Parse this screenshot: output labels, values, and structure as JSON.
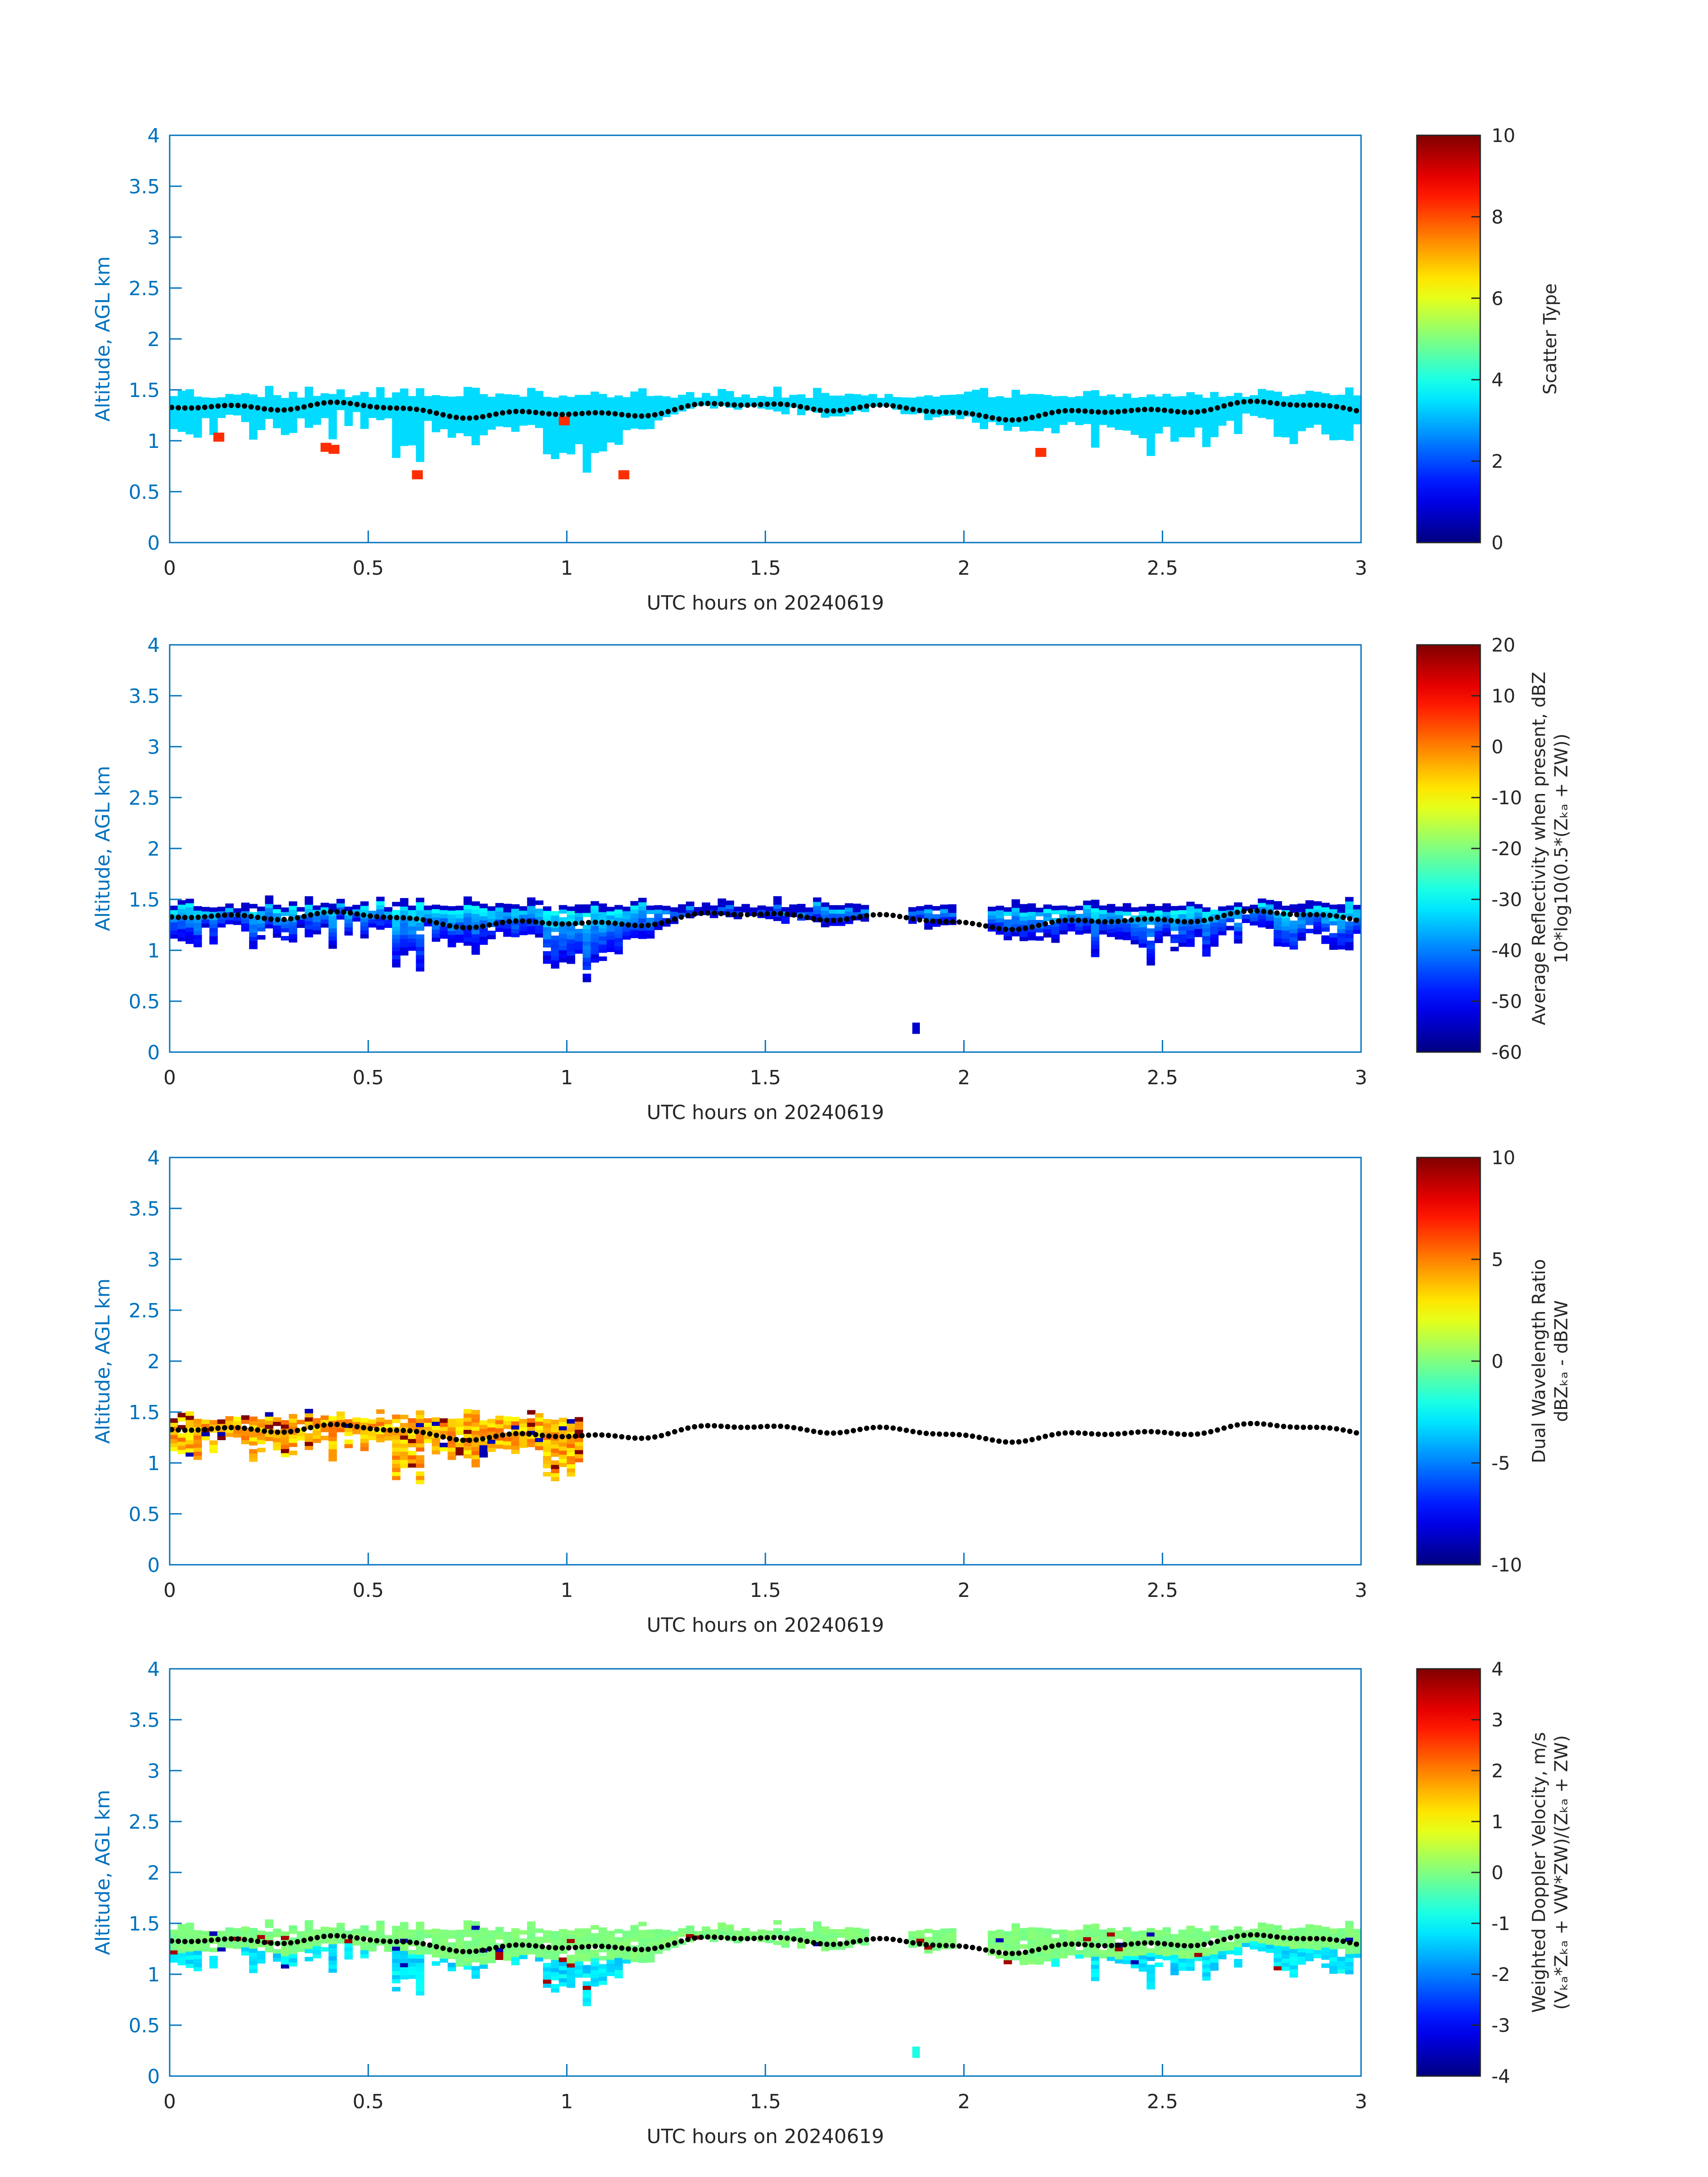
{
  "figure": {
    "background": "#ffffff",
    "axis_color": "#0072bd",
    "text_color": "#262626"
  },
  "colormap": "jet",
  "chart_data": [
    {
      "type": "heatmap",
      "xlabel": "UTC hours on 20240619",
      "ylabel": "Altitude, AGL km",
      "xlim": [
        0,
        3
      ],
      "ylim": [
        0,
        4
      ],
      "xticks": [
        "0",
        "0.5",
        "1",
        "1.5",
        "2",
        "2.5",
        "3"
      ],
      "yticks": [
        "0",
        "0.5",
        "1",
        "1.5",
        "2",
        "2.5",
        "3",
        "3.5",
        "4"
      ],
      "colorbar": {
        "label_lines": [
          "Scatter Type"
        ],
        "clim": [
          0,
          10
        ],
        "ticks": [
          "0",
          "2",
          "4",
          "6",
          "8",
          "10"
        ]
      },
      "field": {
        "kind": "scatter",
        "base_value": 3.4,
        "outlier_value": 8.3,
        "outliers": [
          [
            0.11,
            1.02
          ],
          [
            0.38,
            0.92
          ],
          [
            0.4,
            0.9
          ],
          [
            0.61,
            0.65
          ],
          [
            0.98,
            1.18
          ],
          [
            1.13,
            0.65
          ],
          [
            2.18,
            0.87
          ]
        ]
      },
      "ceilometer_dots": true
    },
    {
      "type": "heatmap",
      "xlabel": "UTC hours on 20240619",
      "ylabel": "Altitude, AGL km",
      "xlim": [
        0,
        3
      ],
      "ylim": [
        0,
        4
      ],
      "xticks": [
        "0",
        "0.5",
        "1",
        "1.5",
        "2",
        "2.5",
        "3"
      ],
      "yticks": [
        "0",
        "0.5",
        "1",
        "1.5",
        "2",
        "2.5",
        "3",
        "3.5",
        "4"
      ],
      "colorbar": {
        "label_lines": [
          "Average Reflectivity when present, dBZ",
          "10*log10(0.5*(Z_Ka + Z_W))"
        ],
        "clim": [
          -60,
          20
        ],
        "ticks": [
          "-60",
          "-50",
          "-40",
          "-30",
          "-20",
          "-10",
          "0",
          "10",
          "20"
        ]
      },
      "field": {
        "kind": "reflectivity",
        "gaps": [
          [
            1.75,
            1.85
          ],
          [
            1.98,
            2.05
          ]
        ],
        "isolated": [
          [
            1.87,
            0.23
          ]
        ]
      },
      "ceilometer_dots": true
    },
    {
      "type": "heatmap",
      "xlabel": "UTC hours on 20240619",
      "ylabel": "Altitude, AGL km",
      "xlim": [
        0,
        3
      ],
      "ylim": [
        0,
        4
      ],
      "xticks": [
        "0",
        "0.5",
        "1",
        "1.5",
        "2",
        "2.5",
        "3"
      ],
      "yticks": [
        "0",
        "0.5",
        "1",
        "1.5",
        "2",
        "2.5",
        "3",
        "3.5",
        "4"
      ],
      "colorbar": {
        "label_lines": [
          "Dual Wavelength Ratio",
          "dBZ_Ka - dBZ_W"
        ],
        "clim": [
          -10,
          10
        ],
        "ticks": [
          "-10",
          "-5",
          "0",
          "5",
          "10"
        ]
      },
      "field": {
        "kind": "dwr",
        "xmax": 1.03
      },
      "ceilometer_dots": true
    },
    {
      "type": "heatmap",
      "xlabel": "UTC hours on 20240619",
      "ylabel": "Altitude, AGL km",
      "xlim": [
        0,
        3
      ],
      "ylim": [
        0,
        4
      ],
      "xticks": [
        "0",
        "0.5",
        "1",
        "1.5",
        "2",
        "2.5",
        "3"
      ],
      "yticks": [
        "0",
        "0.5",
        "1",
        "1.5",
        "2",
        "2.5",
        "3",
        "3.5",
        "4"
      ],
      "colorbar": {
        "label_lines": [
          "Weighted Doppler Velocity, m/s",
          "(V_Ka*Z_Ka + V_W*Z_W)/(Z_Ka + Z_W)"
        ],
        "clim": [
          -4,
          4
        ],
        "ticks": [
          "-4",
          "-3",
          "-2",
          "-1",
          "0",
          "1",
          "2",
          "3",
          "4"
        ]
      },
      "field": {
        "kind": "velocity",
        "gaps": [
          [
            1.75,
            1.85
          ],
          [
            1.98,
            2.05
          ]
        ],
        "isolated": [
          [
            1.87,
            0.23
          ]
        ]
      },
      "ceilometer_dots": true
    }
  ]
}
